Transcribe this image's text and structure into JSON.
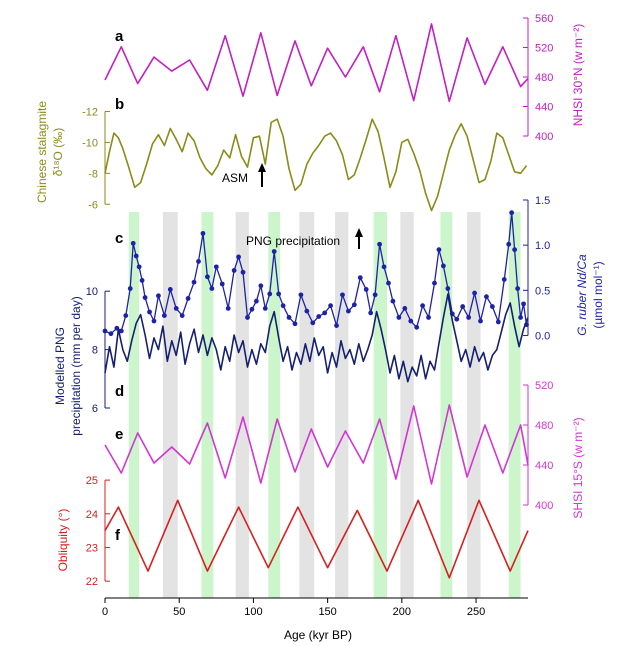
{
  "figure": {
    "x_axis": {
      "label": "Age (kyr BP)",
      "range": [
        0,
        285
      ],
      "ticks": [
        0,
        50,
        100,
        150,
        200,
        250
      ]
    },
    "green_bands": [
      [
        16,
        23
      ],
      [
        65,
        73
      ],
      [
        110,
        118
      ],
      [
        181,
        190
      ],
      [
        226,
        234
      ],
      [
        272,
        280
      ]
    ],
    "grey_bands": [
      [
        39,
        49
      ],
      [
        88,
        97
      ],
      [
        131,
        141
      ],
      [
        155,
        164
      ],
      [
        199,
        208
      ],
      [
        244,
        253
      ]
    ]
  },
  "chart_data": [
    {
      "type": "line",
      "panel": "a",
      "color": "#c020c0",
      "ylabel": "NHSI 30°N (w m⁻²)",
      "axis_side": "right",
      "ylim": [
        400,
        560
      ],
      "yticks": [
        400,
        440,
        480,
        520,
        560
      ],
      "series": [
        {
          "x": [
            0,
            11,
            22,
            33,
            45,
            57,
            69,
            81,
            93,
            105,
            116,
            128,
            139,
            150,
            162,
            174,
            185,
            196,
            208,
            220,
            232,
            244,
            256,
            268,
            280,
            285
          ],
          "y": [
            476,
            521,
            471,
            507,
            488,
            503,
            462,
            536,
            454,
            540,
            455,
            529,
            468,
            519,
            480,
            521,
            460,
            536,
            448,
            552,
            447,
            533,
            470,
            521,
            467,
            478
          ]
        }
      ]
    },
    {
      "type": "line",
      "panel": "b",
      "color": "#8b8b1a",
      "ylabel": "Chinese stalagmite δ¹⁸O (‰)",
      "axis_side": "left",
      "inverted": true,
      "ylim": [
        -5.5,
        -13
      ],
      "yticks": [
        -6,
        -8,
        -10,
        -12
      ],
      "annotations": [
        {
          "text": "ASM",
          "x": 105,
          "arrow": "up"
        }
      ],
      "series": [
        {
          "x": [
            0,
            3,
            6,
            9,
            12,
            16,
            20,
            24,
            28,
            32,
            36,
            40,
            44,
            48,
            52,
            56,
            60,
            64,
            68,
            72,
            76,
            80,
            84,
            88,
            92,
            96,
            100,
            104,
            108,
            112,
            116,
            120,
            124,
            128,
            132,
            136,
            140,
            144,
            148,
            152,
            156,
            160,
            164,
            168,
            172,
            176,
            180,
            184,
            188,
            192,
            196,
            200,
            204,
            208,
            212,
            216,
            220,
            224,
            228,
            232,
            236,
            240,
            244,
            248,
            252,
            256,
            260,
            264,
            268,
            272,
            276,
            280,
            284
          ],
          "y": [
            -8.0,
            -9.4,
            -10.6,
            -10.3,
            -9.6,
            -8.4,
            -7.1,
            -7.4,
            -8.6,
            -9.9,
            -10.5,
            -9.8,
            -10.9,
            -10.2,
            -9.4,
            -10.6,
            -10.1,
            -9.0,
            -8.3,
            -7.9,
            -8.5,
            -9.5,
            -9.0,
            -10.5,
            -9.1,
            -8.4,
            -10.3,
            -10.4,
            -8.6,
            -11.3,
            -11.5,
            -10.4,
            -8.3,
            -6.9,
            -7.3,
            -8.6,
            -9.3,
            -9.8,
            -10.4,
            -10.6,
            -10.1,
            -9.2,
            -7.6,
            -7.9,
            -9.0,
            -10.2,
            -11.5,
            -10.7,
            -9.0,
            -7.1,
            -8.1,
            -10.0,
            -10.2,
            -9.3,
            -8.2,
            -6.7,
            -5.6,
            -6.5,
            -8.0,
            -9.5,
            -10.5,
            -11.2,
            -10.4,
            -8.9,
            -7.4,
            -7.6,
            -8.8,
            -10.6,
            -10.3,
            -9.2,
            -8.1,
            -8.0,
            -8.5
          ]
        }
      ]
    },
    {
      "type": "line",
      "panel": "c",
      "color": "#1e22a6",
      "ylabel": "G. ruber Nd/Ca (µmol mol⁻¹)",
      "axis_side": "right",
      "ylim": [
        -0.05,
        1.5
      ],
      "yticks": [
        0.0,
        0.5,
        1.0,
        1.5
      ],
      "annotations": [
        {
          "text": "PNG precipitation",
          "x": 185,
          "arrow": "up"
        }
      ],
      "series": [
        {
          "markers": true,
          "x": [
            0,
            4,
            8,
            11,
            14,
            17,
            19,
            21,
            23,
            25,
            27,
            30,
            33,
            36,
            40,
            44,
            48,
            52,
            56,
            60,
            63,
            66,
            69,
            72,
            75,
            79,
            83,
            87,
            90,
            93,
            96,
            99,
            102,
            105,
            108,
            111,
            114,
            117,
            120,
            124,
            128,
            132,
            136,
            140,
            144,
            148,
            152,
            156,
            160,
            164,
            168,
            172,
            176,
            179,
            182,
            185,
            188,
            191,
            194,
            198,
            202,
            206,
            210,
            214,
            218,
            222,
            225,
            228,
            231,
            234,
            237,
            241,
            245,
            249,
            253,
            257,
            261,
            265,
            269,
            272,
            274,
            276,
            278,
            280,
            282,
            284
          ],
          "y": [
            0.05,
            0.02,
            0.08,
            0.05,
            0.22,
            0.52,
            1.02,
            0.88,
            0.76,
            0.61,
            0.42,
            0.26,
            0.16,
            0.44,
            0.22,
            0.51,
            0.3,
            0.22,
            0.41,
            0.59,
            0.82,
            1.13,
            0.65,
            0.52,
            0.76,
            0.57,
            0.3,
            0.72,
            0.87,
            0.7,
            0.2,
            0.29,
            0.38,
            0.55,
            0.3,
            0.46,
            0.93,
            0.46,
            0.33,
            0.2,
            0.13,
            0.45,
            0.27,
            0.14,
            0.21,
            0.25,
            0.33,
            0.11,
            0.45,
            0.27,
            0.34,
            0.64,
            0.51,
            0.25,
            0.45,
            1.01,
            0.76,
            0.58,
            0.38,
            0.2,
            0.3,
            0.16,
            0.09,
            0.33,
            0.2,
            0.58,
            0.95,
            0.77,
            0.52,
            0.24,
            0.18,
            0.32,
            0.2,
            0.47,
            0.16,
            0.43,
            0.32,
            0.15,
            0.62,
            1.01,
            1.36,
            0.95,
            0.52,
            0.2,
            0.35,
            0.12
          ]
        }
      ]
    },
    {
      "type": "line",
      "panel": "d",
      "color": "#16206e",
      "ylabel": "Modelled PNG precipitation (mm per day)",
      "axis_side": "left",
      "ylim": [
        6,
        11
      ],
      "yticks": [
        6,
        8,
        10
      ],
      "series": [
        {
          "x": [
            0,
            3,
            6,
            9,
            12,
            15,
            18,
            21,
            24,
            27,
            30,
            33,
            36,
            39,
            42,
            45,
            48,
            51,
            54,
            57,
            60,
            63,
            66,
            69,
            72,
            75,
            78,
            81,
            84,
            87,
            90,
            93,
            96,
            99,
            102,
            105,
            108,
            111,
            114,
            117,
            120,
            123,
            126,
            129,
            132,
            135,
            138,
            141,
            144,
            147,
            150,
            153,
            156,
            159,
            162,
            165,
            168,
            171,
            174,
            177,
            180,
            183,
            186,
            189,
            192,
            195,
            198,
            201,
            204,
            207,
            210,
            213,
            216,
            219,
            222,
            225,
            228,
            231,
            234,
            237,
            240,
            243,
            246,
            249,
            252,
            255,
            258,
            261,
            264,
            267,
            270,
            273,
            276,
            279,
            282,
            285
          ],
          "y": [
            7.2,
            8.1,
            7.4,
            8.7,
            8.0,
            7.6,
            8.3,
            8.9,
            9.2,
            8.5,
            7.7,
            8.4,
            8.0,
            8.8,
            7.6,
            8.3,
            7.8,
            8.6,
            7.5,
            8.2,
            8.7,
            7.9,
            8.5,
            7.8,
            8.4,
            8.0,
            7.3,
            8.1,
            7.6,
            8.5,
            7.9,
            8.3,
            7.4,
            8.0,
            7.5,
            8.2,
            7.9,
            8.8,
            9.3,
            8.4,
            7.6,
            8.1,
            7.3,
            7.9,
            7.5,
            8.2,
            7.6,
            8.4,
            7.8,
            8.1,
            7.2,
            7.9,
            7.4,
            8.3,
            7.7,
            8.0,
            7.5,
            8.2,
            7.6,
            8.0,
            8.5,
            9.3,
            8.7,
            8.0,
            7.2,
            7.8,
            7.0,
            7.6,
            6.9,
            7.4,
            7.1,
            7.8,
            7.0,
            7.6,
            7.3,
            8.2,
            9.1,
            9.9,
            9.0,
            8.3,
            7.6,
            8.0,
            7.4,
            8.1,
            7.6,
            7.9,
            7.3,
            7.8,
            8.0,
            8.6,
            9.2,
            9.6,
            8.8,
            8.1,
            8.7,
            9.1
          ]
        }
      ]
    },
    {
      "type": "line",
      "panel": "e",
      "color": "#d236d2",
      "ylabel": "SHSI 15°S (w m⁻²)",
      "axis_side": "right",
      "ylim": [
        400,
        520
      ],
      "yticks": [
        400,
        440,
        480,
        520
      ],
      "series": [
        {
          "x": [
            0,
            11,
            22,
            33,
            45,
            57,
            69,
            81,
            93,
            105,
            116,
            128,
            139,
            150,
            162,
            174,
            185,
            196,
            208,
            220,
            232,
            244,
            256,
            268,
            280,
            285
          ],
          "y": [
            460,
            432,
            472,
            442,
            458,
            441,
            482,
            427,
            488,
            422,
            486,
            433,
            476,
            438,
            474,
            442,
            486,
            426,
            499,
            421,
            500,
            428,
            480,
            432,
            480,
            440
          ]
        }
      ]
    },
    {
      "type": "line",
      "panel": "f",
      "color": "#d62020",
      "ylabel": "Obliquity (°)",
      "axis_side": "left",
      "ylim": [
        21.5,
        25.3
      ],
      "yticks": [
        22,
        23,
        24,
        25
      ],
      "series": [
        {
          "x": [
            0,
            9,
            29,
            49,
            69,
            90,
            110,
            130,
            150,
            170,
            190,
            211,
            232,
            252,
            273,
            285
          ],
          "y": [
            23.5,
            24.2,
            22.3,
            24.4,
            22.3,
            24.2,
            22.4,
            24.2,
            22.4,
            24.1,
            22.3,
            24.4,
            22.1,
            24.4,
            22.3,
            23.5
          ]
        }
      ]
    }
  ],
  "labels": {
    "panel_a": "a",
    "panel_b": "b",
    "panel_c": "c",
    "panel_d": "d",
    "panel_e": "e",
    "panel_f": "f",
    "a_axis_title": "NHSI 30°N (w m⁻²)",
    "b_axis_title_line1": "Chinese stalagmite",
    "b_axis_title_line2": "δ¹⁸O (‰)",
    "c_axis_title_line1": "G. ruber Nd/Ca",
    "c_axis_title_line2": "(µmol mol⁻¹)",
    "d_axis_title_line1": "Modelled PNG",
    "d_axis_title_line2": "precipitation (mm per day)",
    "e_axis_title": "SHSI 15°S (w m⁻²)",
    "f_axis_title": "Obliquity (°)",
    "asm": "ASM",
    "png_precip": "PNG precipitation",
    "x_axis_title": "Age (kyr BP)"
  }
}
